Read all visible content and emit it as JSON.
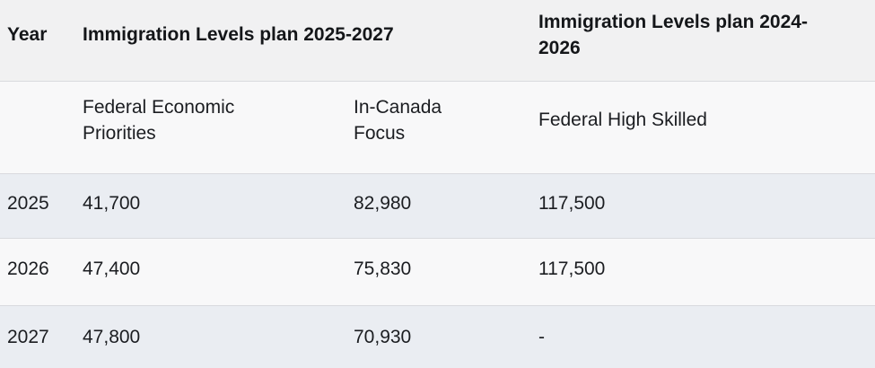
{
  "chart_data": {
    "type": "table",
    "header_row": {
      "year": "Year",
      "group_2025_2027": "Immigration Levels plan 2025-2027",
      "group_2024_2026": "Immigration Levels plan 2024-2026"
    },
    "subheader_row": {
      "federal_economic": "Federal Economic Priorities",
      "in_canada": "In-Canada Focus",
      "federal_high_skilled": "Federal High Skilled"
    },
    "rows": [
      {
        "year": "2025",
        "federal_economic": "41,700",
        "in_canada": "82,980",
        "federal_high_skilled": "117,500"
      },
      {
        "year": "2026",
        "federal_economic": "47,400",
        "in_canada": "75,830",
        "federal_high_skilled": "117,500"
      },
      {
        "year": "2027",
        "federal_economic": "47,800",
        "in_canada": "70,930",
        "federal_high_skilled": "-"
      }
    ],
    "numeric": {
      "categories": [
        2025,
        2026,
        2027
      ],
      "series": [
        {
          "name": "Federal Economic Priorities (Immigration Levels plan 2025-2027)",
          "values": [
            41700,
            47400,
            47800
          ]
        },
        {
          "name": "In-Canada Focus (Immigration Levels plan 2025-2027)",
          "values": [
            82980,
            75830,
            70930
          ]
        },
        {
          "name": "Federal High Skilled (Immigration Levels plan 2024-2026)",
          "values": [
            117500,
            117500,
            null
          ]
        }
      ]
    }
  },
  "colors": {
    "header_row_bg": "#f1f1f2",
    "light_row_bg": "#f8f8f9",
    "striped_row_bg": "#eaedf2",
    "row_border": "#d9dade",
    "text": "#1b1d21"
  }
}
